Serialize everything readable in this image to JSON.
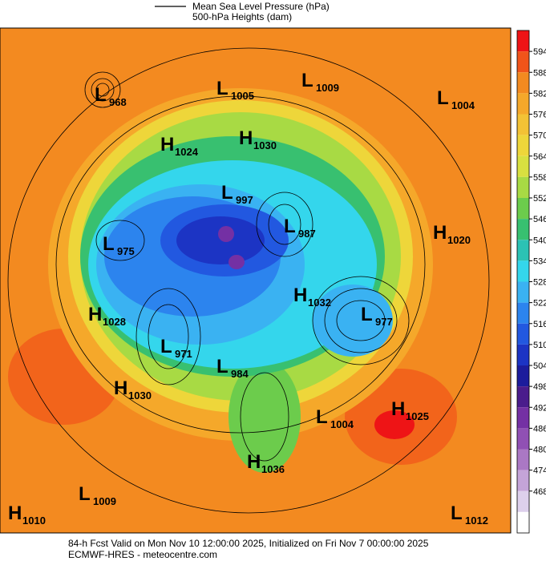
{
  "legend": {
    "lines": [
      "Mean Sea Level Pressure (hPa)",
      "500-hPa Heights (dam)"
    ]
  },
  "colorbar": {
    "ticks": [
      594,
      588,
      582,
      576,
      570,
      564,
      558,
      552,
      546,
      540,
      534,
      528,
      522,
      516,
      510,
      504,
      498,
      492,
      486,
      480,
      474,
      468
    ],
    "colors": [
      "#ee1416",
      "#f1541a",
      "#f38a20",
      "#f5a82a",
      "#f3c235",
      "#eed63a",
      "#d8e040",
      "#a8da44",
      "#6ccc4c",
      "#38c070",
      "#2cc2b4",
      "#34d6ec",
      "#3ab2f2",
      "#2c84ee",
      "#2258e0",
      "#1c34c4",
      "#1c1c9c",
      "#4a1c8c",
      "#7430a4",
      "#9050b4",
      "#aa78c4",
      "#c4a4d8",
      "#ddd0ec",
      "#ffffff"
    ]
  },
  "centers": [
    {
      "type": "L",
      "value": "968"
    },
    {
      "type": "L",
      "value": "1005"
    },
    {
      "type": "L",
      "value": "1009"
    },
    {
      "type": "L",
      "value": "1004"
    },
    {
      "type": "H",
      "value": "1024"
    },
    {
      "type": "H",
      "value": "1030"
    },
    {
      "type": "L",
      "value": "997"
    },
    {
      "type": "L",
      "value": "987"
    },
    {
      "type": "H",
      "value": "1020"
    },
    {
      "type": "L",
      "value": "975"
    },
    {
      "type": "H",
      "value": "1032"
    },
    {
      "type": "H",
      "value": "1028"
    },
    {
      "type": "L",
      "value": "977"
    },
    {
      "type": "L",
      "value": "971"
    },
    {
      "type": "L",
      "value": "984"
    },
    {
      "type": "H",
      "value": "1030"
    },
    {
      "type": "H",
      "value": "1025"
    },
    {
      "type": "L",
      "value": "1004"
    },
    {
      "type": "H",
      "value": "1036"
    },
    {
      "type": "L",
      "value": "1009"
    },
    {
      "type": "H",
      "value": "1010"
    },
    {
      "type": "L",
      "value": "1012"
    }
  ],
  "footer": {
    "lines": [
      "84-h Fcst Valid on Mon Nov 10 12:00:00 2025, Initialized on Fri Nov  7 00:00:00 2025",
      "ECMWF-HRES - meteocentre.com"
    ]
  }
}
